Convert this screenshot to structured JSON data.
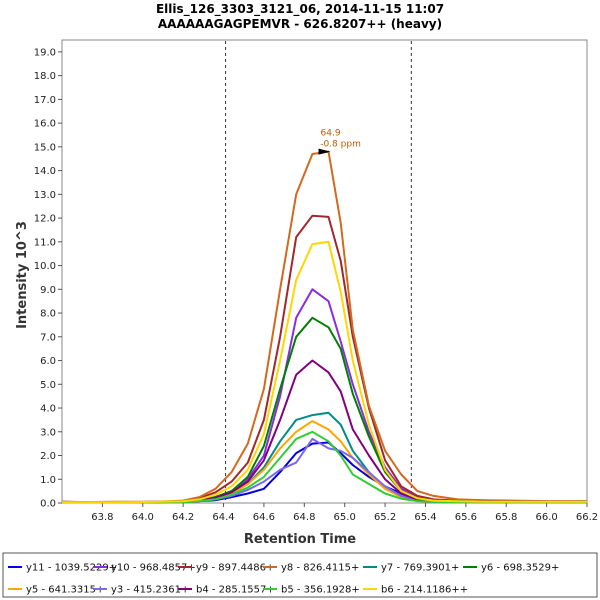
{
  "chart_data": {
    "type": "line",
    "title": "Ellis_126_3303_3121_06, 2014-11-15 11:07",
    "subtitle": "AAAAAAGAGPEMVR - 626.8207++ (heavy)",
    "xlabel": "Retention Time",
    "ylabel": "Intensity 10^3",
    "xlim": [
      63.6,
      66.2
    ],
    "ylim": [
      0,
      19.5
    ],
    "xticks": [
      "63.8",
      "64.0",
      "64.2",
      "64.4",
      "64.6",
      "64.8",
      "65.0",
      "65.2",
      "65.4",
      "65.6",
      "65.8",
      "66.0",
      "66.2"
    ],
    "yticks": [
      "0.0",
      "1.0",
      "2.0",
      "3.0",
      "4.0",
      "5.0",
      "6.0",
      "7.0",
      "8.0",
      "9.0",
      "10.0",
      "11.0",
      "12.0",
      "13.0",
      "14.0",
      "15.0",
      "16.0",
      "17.0",
      "18.0",
      "19.0"
    ],
    "boundaries": [
      64.41,
      65.33
    ],
    "annotation": {
      "line1": "64.9",
      "line2": "-0.8 ppm",
      "x": 64.92,
      "y": 14.8,
      "color": "#c05a00"
    },
    "x": [
      63.6,
      63.72,
      63.84,
      63.96,
      64.08,
      64.2,
      64.28,
      64.36,
      64.44,
      64.52,
      64.6,
      64.68,
      64.76,
      64.84,
      64.92,
      64.98,
      65.04,
      65.12,
      65.2,
      65.28,
      65.36,
      65.44,
      65.56,
      65.7,
      65.84,
      66.0,
      66.2
    ],
    "series": [
      {
        "name": "y11 - 1039.5229+",
        "color": "#0000e0",
        "values": [
          0.05,
          0.03,
          0.03,
          0.04,
          0.05,
          0.05,
          0.08,
          0.12,
          0.25,
          0.4,
          0.6,
          1.3,
          2.1,
          2.5,
          2.55,
          2.1,
          1.6,
          1.1,
          0.7,
          0.4,
          0.2,
          0.1,
          0.08,
          0.06,
          0.05,
          0.05,
          0.05
        ]
      },
      {
        "name": "y10 - 968.4857+",
        "color": "#8a2be2",
        "values": [
          0.04,
          0.03,
          0.03,
          0.04,
          0.05,
          0.06,
          0.12,
          0.25,
          0.5,
          1.0,
          2.0,
          4.5,
          7.8,
          9.0,
          8.5,
          6.8,
          5.0,
          3.0,
          1.5,
          0.6,
          0.25,
          0.12,
          0.08,
          0.06,
          0.05,
          0.05,
          0.05
        ]
      },
      {
        "name": "y9 - 897.4486+",
        "color": "#a0282d",
        "values": [
          0.04,
          0.03,
          0.03,
          0.04,
          0.05,
          0.08,
          0.2,
          0.45,
          0.9,
          1.7,
          3.5,
          7.0,
          11.2,
          12.1,
          12.05,
          10.2,
          7.0,
          4.0,
          1.8,
          0.7,
          0.3,
          0.15,
          0.1,
          0.07,
          0.05,
          0.05,
          0.05
        ]
      },
      {
        "name": "y8 - 826.4115+",
        "color": "#d2691e",
        "values": [
          0.06,
          0.04,
          0.05,
          0.05,
          0.06,
          0.1,
          0.25,
          0.6,
          1.3,
          2.5,
          4.8,
          9.0,
          13.0,
          14.7,
          14.8,
          11.8,
          7.3,
          4.1,
          2.2,
          1.2,
          0.5,
          0.3,
          0.15,
          0.12,
          0.1,
          0.08,
          0.08
        ]
      },
      {
        "name": "y7 - 769.3901+",
        "color": "#008b8b",
        "values": [
          0.03,
          0.02,
          0.02,
          0.03,
          0.04,
          0.05,
          0.1,
          0.2,
          0.4,
          0.8,
          1.5,
          2.6,
          3.5,
          3.7,
          3.8,
          3.3,
          2.2,
          1.3,
          0.6,
          0.3,
          0.15,
          0.08,
          0.06,
          0.05,
          0.05,
          0.05,
          0.05
        ]
      },
      {
        "name": "y6 - 698.3529+",
        "color": "#008000",
        "values": [
          0.03,
          0.02,
          0.02,
          0.03,
          0.04,
          0.06,
          0.12,
          0.25,
          0.5,
          1.1,
          2.4,
          4.8,
          7.0,
          7.8,
          7.4,
          6.5,
          4.6,
          2.8,
          1.3,
          0.5,
          0.2,
          0.1,
          0.07,
          0.05,
          0.05,
          0.05,
          0.05
        ]
      },
      {
        "name": "y5 - 641.3315+",
        "color": "#ffa500",
        "values": [
          0.03,
          0.02,
          0.02,
          0.03,
          0.04,
          0.05,
          0.1,
          0.2,
          0.4,
          0.8,
          1.4,
          2.3,
          3.0,
          3.45,
          3.1,
          2.6,
          1.9,
          1.2,
          0.6,
          0.25,
          0.12,
          0.07,
          0.05,
          0.05,
          0.05,
          0.05,
          0.05
        ]
      },
      {
        "name": "y3 - 415.2361+",
        "color": "#7b68ee",
        "values": [
          0.02,
          0.02,
          0.02,
          0.02,
          0.03,
          0.04,
          0.08,
          0.15,
          0.3,
          0.55,
          0.9,
          1.4,
          1.7,
          2.7,
          2.3,
          2.2,
          1.9,
          1.3,
          0.7,
          0.3,
          0.12,
          0.06,
          0.04,
          0.04,
          0.04,
          0.04,
          0.04
        ]
      },
      {
        "name": "b4 - 285.1557+",
        "color": "#800080",
        "values": [
          0.03,
          0.02,
          0.02,
          0.03,
          0.04,
          0.05,
          0.1,
          0.22,
          0.45,
          0.9,
          1.8,
          3.5,
          5.4,
          6.0,
          5.5,
          4.7,
          3.1,
          2.0,
          1.0,
          0.4,
          0.15,
          0.08,
          0.06,
          0.05,
          0.05,
          0.05,
          0.05
        ]
      },
      {
        "name": "b5 - 356.1928+",
        "color": "#32cd32",
        "values": [
          0.02,
          0.02,
          0.02,
          0.02,
          0.03,
          0.04,
          0.08,
          0.16,
          0.35,
          0.65,
          1.1,
          1.9,
          2.7,
          3.0,
          2.6,
          2.0,
          1.2,
          0.8,
          0.4,
          0.18,
          0.08,
          0.05,
          0.04,
          0.04,
          0.04,
          0.04,
          0.04
        ]
      },
      {
        "name": "b6 - 214.1186++",
        "color": "#ffd700",
        "values": [
          0.04,
          0.03,
          0.03,
          0.04,
          0.05,
          0.07,
          0.15,
          0.35,
          0.7,
          1.4,
          2.9,
          6.0,
          9.4,
          10.9,
          11.0,
          8.9,
          6.0,
          3.3,
          1.4,
          0.5,
          0.2,
          0.1,
          0.07,
          0.05,
          0.05,
          0.05,
          0.05
        ]
      }
    ]
  }
}
